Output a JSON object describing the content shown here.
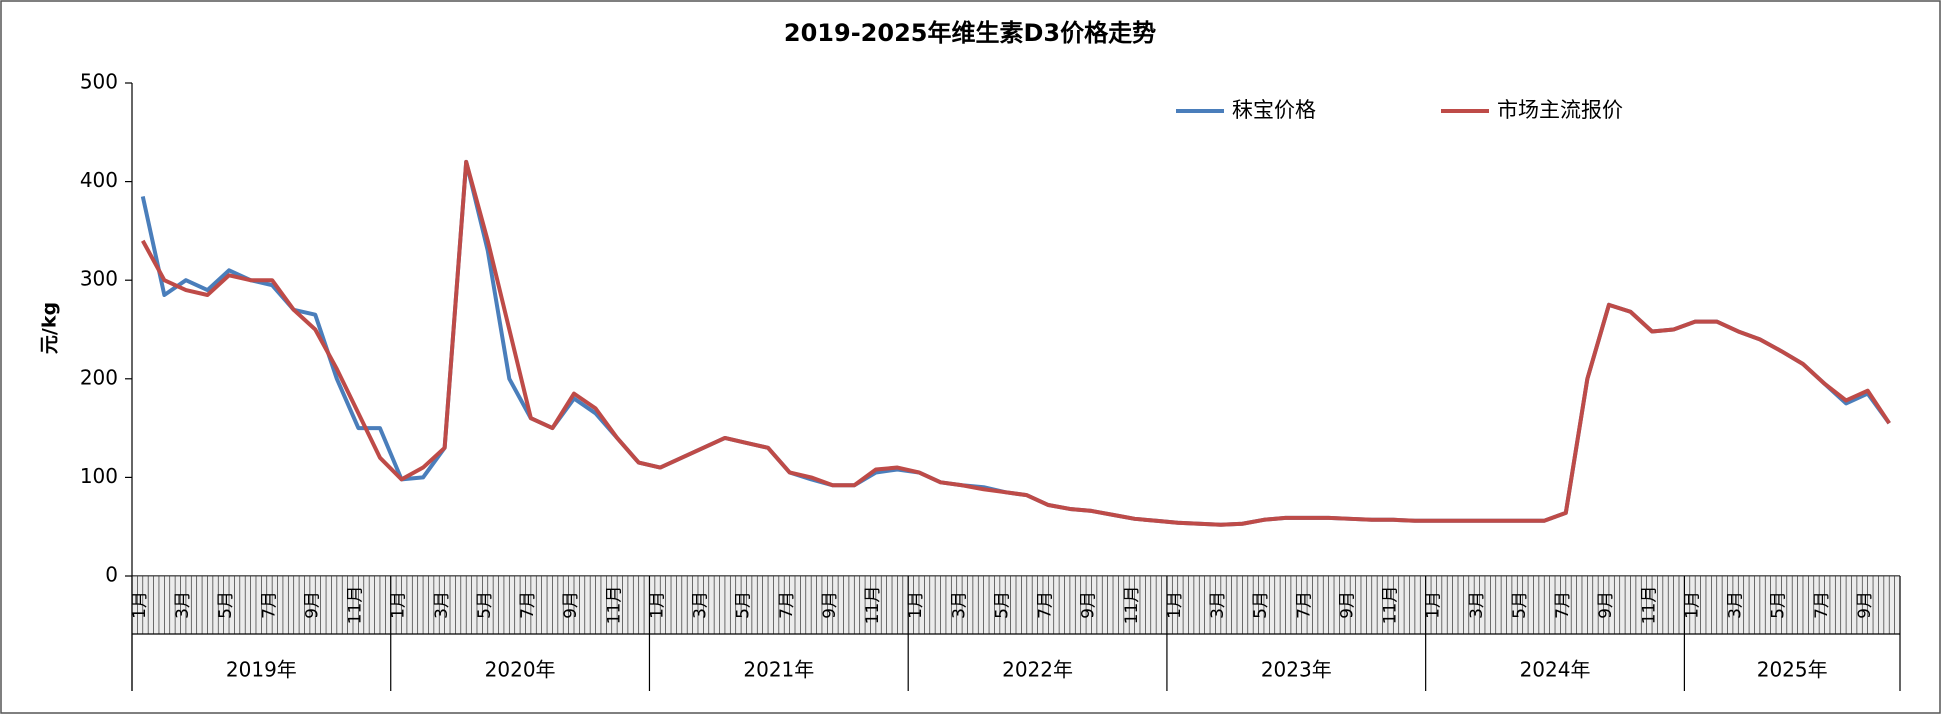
{
  "chart_data": {
    "type": "line",
    "title": "2019-2025年维生素D3价格走势",
    "ylabel": "元/kg",
    "categories": [
      "1月",
      null,
      "3月",
      null,
      "5月",
      null,
      "7月",
      null,
      "9月",
      null,
      "11月",
      null,
      "1月",
      null,
      "3月",
      null,
      "5月",
      null,
      "7月",
      null,
      "9月",
      null,
      "11月",
      null,
      "1月",
      null,
      "3月",
      null,
      "5月",
      null,
      "7月",
      null,
      "9月",
      null,
      "11月",
      null,
      "1月",
      null,
      "3月",
      null,
      "5月",
      null,
      "7月",
      null,
      "9月",
      null,
      "11月",
      null,
      "1月",
      null,
      "3月",
      null,
      "5月",
      null,
      "7月",
      null,
      "9月",
      null,
      "11月",
      null,
      "1月",
      null,
      "3月",
      null,
      "5月",
      null,
      "7月",
      null,
      "9月",
      null,
      "11月",
      null,
      "1月",
      null,
      "3月",
      null,
      "5月",
      null,
      "7月",
      null,
      "9月",
      null
    ],
    "groups": [
      "2019年",
      "2020年",
      "2021年",
      "2022年",
      "2023年",
      "2024年",
      "2025年"
    ],
    "series": [
      {
        "name": "秣宝价格",
        "color": "#4a7ebb",
        "values": [
          385,
          285,
          300,
          290,
          310,
          300,
          295,
          270,
          265,
          200,
          150,
          150,
          98,
          100,
          130,
          420,
          330,
          200,
          160,
          150,
          180,
          165,
          140,
          115,
          110,
          120,
          130,
          140,
          135,
          130,
          105,
          98,
          92,
          92,
          105,
          108,
          105,
          95,
          92,
          90,
          85,
          82,
          72,
          68,
          66,
          62,
          58,
          56,
          54,
          53,
          52,
          53,
          57,
          59,
          59,
          59,
          58,
          57,
          57,
          56,
          56,
          56,
          56,
          56,
          56,
          56,
          64,
          200,
          275,
          268,
          248,
          250,
          258,
          258,
          248,
          240,
          228,
          215,
          195,
          175,
          185,
          155
        ]
      },
      {
        "name": "市场主流报价",
        "color": "#be4b48",
        "values": [
          340,
          300,
          290,
          285,
          305,
          300,
          300,
          270,
          250,
          210,
          165,
          120,
          98,
          110,
          130,
          420,
          340,
          250,
          160,
          150,
          185,
          170,
          140,
          115,
          110,
          120,
          130,
          140,
          135,
          130,
          105,
          100,
          92,
          92,
          108,
          110,
          105,
          95,
          92,
          88,
          85,
          82,
          72,
          68,
          66,
          62,
          58,
          56,
          54,
          53,
          52,
          53,
          57,
          59,
          59,
          59,
          58,
          57,
          57,
          56,
          56,
          56,
          56,
          56,
          56,
          56,
          64,
          200,
          275,
          268,
          248,
          250,
          258,
          258,
          248,
          240,
          228,
          215,
          195,
          178,
          188,
          155
        ]
      }
    ],
    "ylim": [
      0,
      500
    ],
    "yticks": [
      0,
      100,
      200,
      300,
      400,
      500
    ],
    "grid": false
  }
}
